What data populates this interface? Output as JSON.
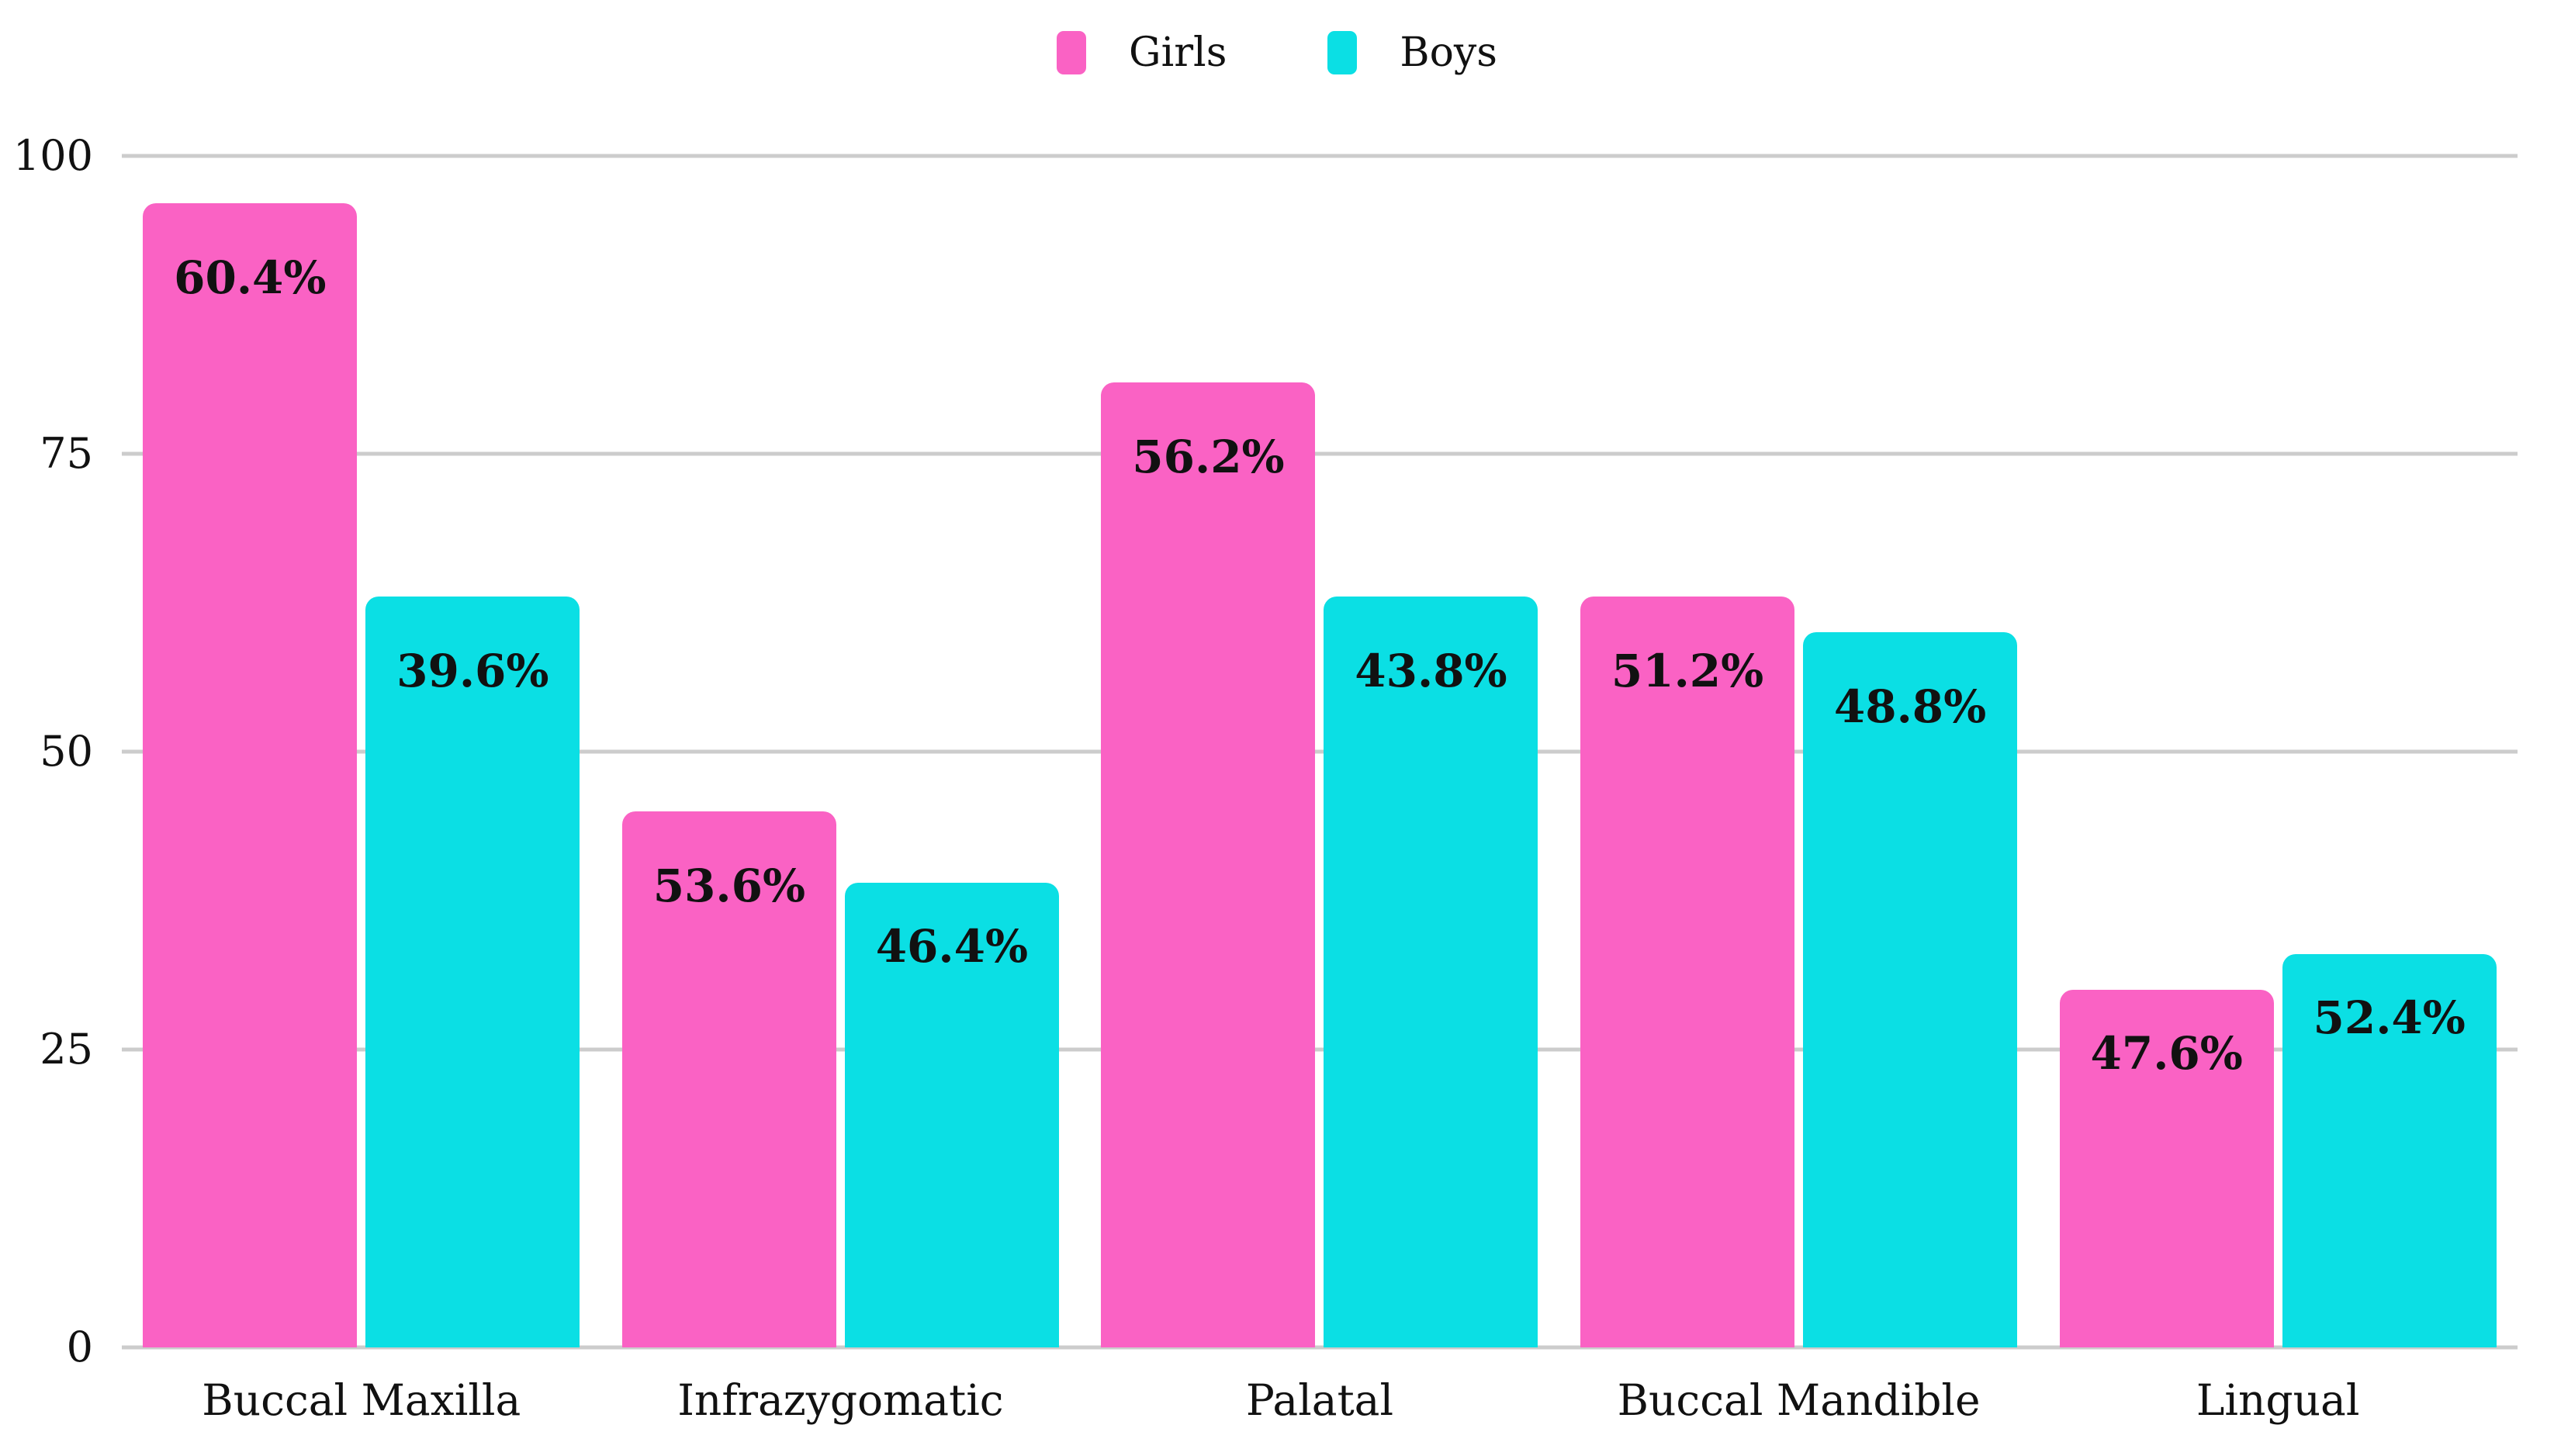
{
  "colors": {
    "girls": "#FA62C4",
    "boys": "#0BDFE4",
    "gridline": "#cccccc",
    "label_text": "#111111",
    "background": "#ffffff"
  },
  "legend": {
    "items": [
      {
        "label": "Girls",
        "color": "#FA62C4"
      },
      {
        "label": "Boys",
        "color": "#0BDFE4"
      }
    ]
  },
  "chart_data": {
    "type": "bar",
    "title": "",
    "xlabel": "",
    "ylabel": "",
    "categories": [
      "Buccal Maxilla",
      "Infrazygomatic",
      "Palatal",
      "Buccal Mandible",
      "Lingual"
    ],
    "series": [
      {
        "name": "Girls",
        "color": "#FA62C4",
        "values": [
          96,
          45,
          81,
          63,
          30
        ],
        "labels": [
          "60.4%",
          "53.6%",
          "56.2%",
          "51.2%",
          "47.6%"
        ]
      },
      {
        "name": "Boys",
        "color": "#0BDFE4",
        "values": [
          63,
          39,
          63,
          60,
          33
        ],
        "labels": [
          "39.6%",
          "46.4%",
          "43.8%",
          "48.8%",
          "52.4%"
        ]
      }
    ],
    "ylim": [
      0,
      100
    ],
    "yticks": [
      0,
      25,
      50,
      75,
      100
    ],
    "grid": true,
    "legend_position": "top"
  }
}
